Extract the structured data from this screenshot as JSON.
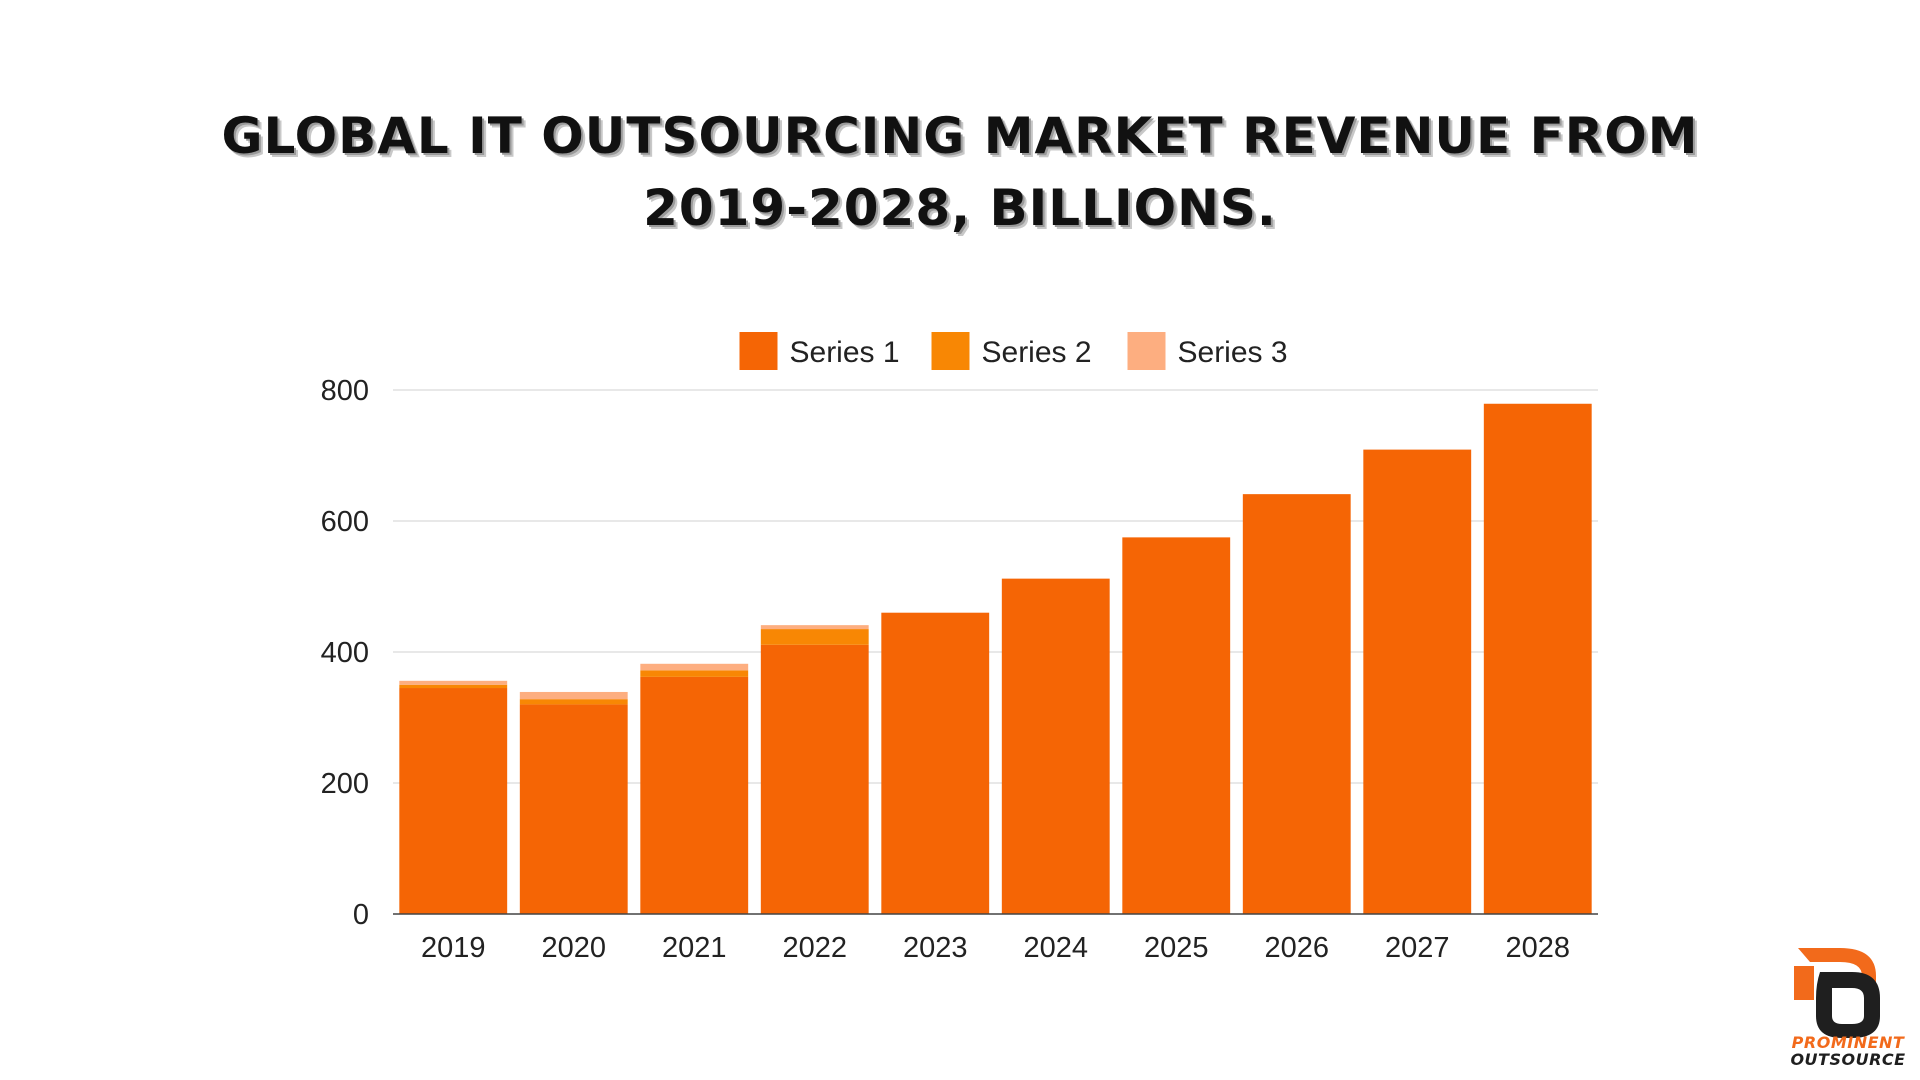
{
  "title": {
    "line1": "GLOBAL IT OUTSOURCING MARKET REVENUE FROM",
    "line2": "2019-2028, BILLIONS."
  },
  "colors": {
    "series1": "#f56505",
    "series2": "#f88704",
    "series3": "#fdae80",
    "grid": "#d9d9d9",
    "axis": "#444444"
  },
  "chart_data": {
    "type": "bar",
    "stacked": true,
    "title": "GLOBAL IT OUTSOURCING MARKET REVENUE FROM 2019-2028, BILLIONS.",
    "xlabel": "",
    "ylabel": "",
    "categories": [
      "2019",
      "2020",
      "2021",
      "2022",
      "2023",
      "2024",
      "2025",
      "2026",
      "2027",
      "2028"
    ],
    "series": [
      {
        "name": "Series 1",
        "values": [
          345,
          320,
          362,
          411,
          460,
          512,
          575,
          641,
          709,
          779
        ]
      },
      {
        "name": "Series 2",
        "values": [
          5,
          8,
          10,
          24,
          0,
          0,
          0,
          0,
          0,
          0
        ]
      },
      {
        "name": "Series 3",
        "values": [
          6,
          11,
          10,
          6,
          0,
          0,
          0,
          0,
          0,
          0
        ]
      }
    ],
    "ylim": [
      0,
      800
    ],
    "yticks": [
      "0",
      "200",
      "400",
      "600",
      "800"
    ],
    "grid": true,
    "legend": "top-center"
  },
  "logo": {
    "line1": "PROMINENT",
    "line2": "OUTSOURCE"
  }
}
